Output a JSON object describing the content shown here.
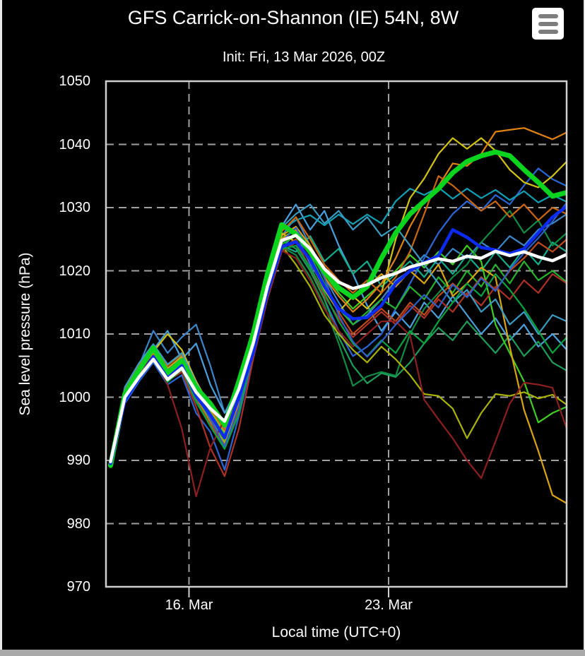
{
  "page": {
    "title": "GFS Carrick-on-Shannon (IE) 54N, 8W",
    "subtitle": "Init: Fri, 13 Mar 2026, 00Z"
  },
  "menu": {
    "icon": "hamburger-icon",
    "tooltip": "Chart context menu"
  },
  "chart_data": {
    "type": "line",
    "title": "GFS Carrick-on-Shannon (IE) 54N, 8W",
    "subtitle": "Init: Fri, 13 Mar 2026, 00Z",
    "xlabel": "Local time (UTC+0)",
    "ylabel": "Sea level pressure (hPa)",
    "ylim": [
      970,
      1050
    ],
    "yticks": [
      970,
      980,
      990,
      1000,
      1010,
      1020,
      1030,
      1040,
      1050
    ],
    "xticks": [
      {
        "hours": 72,
        "label": "16. Mar"
      },
      {
        "hours": 240,
        "label": "23. Mar"
      }
    ],
    "grid": "dashed",
    "background": "#000000",
    "legend": "none",
    "x_hours": [
      6,
      18,
      30,
      42,
      54,
      66,
      78,
      90,
      102,
      114,
      126,
      138,
      150,
      162,
      174,
      186,
      198,
      210,
      222,
      234,
      246,
      258,
      270,
      282,
      294,
      306,
      318,
      330,
      342,
      354,
      366,
      378,
      390
    ],
    "series": [
      {
        "name": "ens-member-01",
        "color": "#3c85c8",
        "width": 2.2,
        "values": [
          989.9,
          1001,
          1005,
          1010.5,
          1007,
          1009.5,
          1011.5,
          1005,
          997.5,
          1002,
          1010.5,
          1018,
          1025.5,
          1028.5,
          1024,
          1019,
          1015,
          1011.5,
          1013,
          1015.5,
          1018.5,
          1020,
          1022.5,
          1021,
          1023.5,
          1022,
          1024.5,
          1023,
          1025.5,
          1024,
          1026.5,
          1027.5,
          1029
        ]
      },
      {
        "name": "ens-member-02",
        "color": "#2b66d6",
        "width": 2.2,
        "values": [
          989.3,
          999,
          1002.5,
          1005.5,
          1002,
          1003.5,
          997.5,
          994.5,
          988.5,
          997,
          1006.5,
          1016,
          1023.5,
          1026,
          1021,
          1015.5,
          1010.5,
          1006.5,
          1008,
          1010,
          1014,
          1018,
          1022,
          1026,
          1029,
          1031,
          1029.5,
          1032,
          1030.5,
          1033.5,
          1036.2,
          1034.5,
          1033.4
        ]
      },
      {
        "name": "ens-member-03",
        "color": "#4aa0dc",
        "width": 2.2,
        "values": [
          990.2,
          1001.5,
          1004.5,
          1007.5,
          1010.5,
          1006,
          1008.5,
          1002,
          997.5,
          1000.5,
          1011,
          1020,
          1027,
          1030.5,
          1026.5,
          1029.5,
          1024,
          1019.5,
          1014.5,
          1010.5,
          1013.5,
          1011,
          1015,
          1012.5,
          1016,
          1013,
          1010,
          1012.5,
          1009,
          1011.5,
          1008,
          1010,
          1007.5
        ]
      },
      {
        "name": "ens-member-04",
        "color": "#12a0b4",
        "width": 2.2,
        "values": [
          989.6,
          1000.5,
          1004,
          1008,
          1004.5,
          1006.5,
          1001.5,
          998,
          994.5,
          1000,
          1010.5,
          1019.5,
          1026.5,
          1028,
          1028.8,
          1027.2,
          1028.9,
          1027.4,
          1028.9,
          1027.5,
          1031,
          1033,
          1032,
          1033.2,
          1031.4,
          1033,
          1031.5,
          1032.8,
          1031.2,
          1032.6,
          1030.8,
          1032,
          1030.9
        ]
      },
      {
        "name": "ens-member-05",
        "color": "#12ad8d",
        "width": 2.2,
        "values": [
          989.4,
          999.5,
          1003,
          1006,
          1002.5,
          1004.5,
          999.5,
          996,
          992.5,
          998,
          1008,
          1016.5,
          1024,
          1023,
          1025.5,
          1021.5,
          1023.5,
          1019.5,
          1021.5,
          1017.5,
          1019.5,
          1021.5,
          1019,
          1022,
          1019.5,
          1022.5,
          1020,
          1023,
          1020.5,
          1023.5,
          1021,
          1024.5,
          1023
        ]
      },
      {
        "name": "ens-member-06",
        "color": "#1d9e5a",
        "width": 2.2,
        "values": [
          989.7,
          1000.8,
          1004.2,
          1007,
          1003.8,
          1005.5,
          1000.5,
          997,
          993.8,
          999,
          1009,
          1017.5,
          1024.8,
          1023.5,
          1020,
          1015.5,
          1009.5,
          1005,
          1002.2,
          1003.8,
          1003.2,
          1005.5,
          1008.5,
          1011,
          1009,
          1012,
          1009.5,
          1007,
          1009.8,
          1006.5,
          1008.8,
          1005.5,
          1004.2
        ]
      },
      {
        "name": "ens-member-07",
        "color": "#27b32d",
        "width": 2.2,
        "values": [
          989.1,
          999.8,
          1003.6,
          1006.8,
          1003.2,
          1005,
          1000.2,
          996.5,
          993,
          998.5,
          1008.5,
          1017.2,
          1024.2,
          1025.5,
          1022.5,
          1018,
          1014,
          1011.5,
          1013.5,
          1015.5,
          1014,
          1017.5,
          1015.5,
          1019,
          1016.5,
          1020,
          1017.5,
          1021,
          1018,
          1021.5,
          1018.5,
          1020,
          1018.2
        ]
      },
      {
        "name": "ens-member-08",
        "color": "#3fce22",
        "width": 2.2,
        "values": [
          990,
          1001.2,
          1004.8,
          1007.8,
          1004.2,
          1006,
          1001.2,
          997.8,
          994.2,
          1000,
          1009.5,
          1018.2,
          1025.2,
          1026.5,
          1023.5,
          1019.5,
          1016.5,
          1014,
          1016,
          1018,
          1020,
          1022.5,
          1020.5,
          1023,
          1021,
          1024,
          1021.5,
          1011.5,
          1007,
          1002.5,
          996,
          997.5,
          998.5
        ]
      },
      {
        "name": "ens-member-09",
        "color": "#108c44",
        "width": 2.2,
        "values": [
          989.2,
          1000.2,
          1003.8,
          1006.2,
          1002.8,
          1004.2,
          999.2,
          995.5,
          992,
          997.5,
          1007.8,
          1016.8,
          1023.8,
          1022.5,
          1019,
          1014.5,
          1008.5,
          1001.8,
          1003.3,
          1004,
          1003.4,
          1010,
          1014,
          1016.5,
          1019,
          1021,
          1024.5,
          1027,
          1029.5,
          1026,
          1028,
          1024,
          1026
        ]
      },
      {
        "name": "ens-member-10",
        "color": "#aab303",
        "width": 2.2,
        "values": [
          989.8,
          1000.4,
          1004,
          1006.4,
          1003,
          1004.8,
          999.8,
          996,
          992.8,
          998.2,
          1008.2,
          1017,
          1024,
          1021,
          1017.5,
          1013,
          1010,
          1007.5,
          1005.5,
          1008,
          1006,
          1003.5,
          1000.5,
          1000.2,
          998.2,
          993.5,
          997.5,
          1000.5,
          1000.2,
          1000.8,
          999.8,
          1000.4,
          998.8
        ]
      },
      {
        "name": "ens-member-11",
        "color": "#d2c313",
        "width": 2.2,
        "values": [
          989.5,
          1000.6,
          1004.4,
          1007.2,
          1010,
          1007.5,
          1002.5,
          998.5,
          995,
          1000.5,
          1010.8,
          1019,
          1026,
          1024.5,
          1021.5,
          1017,
          1013.5,
          1016,
          1014,
          1016.5,
          1025,
          1031.5,
          1034.6,
          1038.5,
          1041,
          1039.3,
          1041,
          1039,
          1036,
          1034,
          1033.2,
          1035,
          1037.3
        ]
      },
      {
        "name": "ens-member-12",
        "color": "#d9a511",
        "width": 2.2,
        "values": [
          990.1,
          1001,
          1004.6,
          1007.6,
          1004.6,
          1006.4,
          1001.6,
          998,
          994.6,
          1000.2,
          1010.2,
          1018.6,
          1025.6,
          1027,
          1024,
          1020,
          1017.5,
          1015.5,
          1017.5,
          1019.5,
          1017.5,
          1020,
          1018,
          1021,
          1016,
          1018,
          1020.5,
          1019,
          1008,
          998,
          991.5,
          984.5,
          983.2
        ]
      },
      {
        "name": "ens-member-13",
        "color": "#e08214",
        "width": 2.2,
        "values": [
          989.4,
          1000.2,
          1004.2,
          1007,
          1003.6,
          1005.2,
          1000.6,
          996.8,
          993.4,
          999,
          1009.2,
          1018,
          1025,
          1026.5,
          1023,
          1019,
          1016,
          1013.5,
          1015.5,
          1018,
          1022,
          1027,
          1031,
          1033.4,
          1037,
          1036.6,
          1038.5,
          1042,
          1042.3,
          1042.6,
          1041.7,
          1040.8,
          1041.9
        ]
      },
      {
        "name": "ens-member-14",
        "color": "#cb6711",
        "width": 2.2,
        "values": [
          989.9,
          1001.4,
          1005.2,
          1008.2,
          1005,
          1006.8,
          1002,
          998.2,
          994.8,
          1000.8,
          1010.6,
          1019.2,
          1026.2,
          1028.5,
          1025,
          1021,
          1018.5,
          1016.5,
          1018.5,
          1016.5,
          1019,
          1023,
          1029,
          1035,
          1033.5,
          1031.5,
          1029.5,
          1031,
          1028.5,
          1030.5,
          1028,
          1030,
          1029
        ]
      },
      {
        "name": "ens-member-15",
        "color": "#bf4a1c",
        "width": 2.2,
        "values": [
          989.6,
          1000,
          1003.4,
          1006.6,
          1003.4,
          1004.6,
          999.6,
          995.8,
          992.4,
          997.8,
          1008,
          1016.6,
          1023.6,
          1025,
          1021.5,
          1017.5,
          1013.5,
          1010,
          1012,
          1014,
          1012,
          1015,
          1013,
          1016,
          1018,
          1016,
          1019,
          1017,
          1020,
          1022,
          1024.5,
          1023,
          1025
        ]
      },
      {
        "name": "ens-member-16",
        "color": "#ad3124",
        "width": 2.2,
        "values": [
          989.3,
          999.6,
          1003.2,
          1006,
          1002.6,
          1004,
          998.5,
          992,
          987.5,
          995,
          1006,
          1015.5,
          1023,
          1024.5,
          1020.5,
          1016,
          1012.5,
          1009.5,
          1011.5,
          1013.5,
          1011.5,
          1014.5,
          1012.5,
          1015.5,
          1013.5,
          1016.5,
          1014.5,
          1017.5,
          1015.5,
          1018.5,
          1016.5,
          1019.5,
          1018
        ]
      },
      {
        "name": "ens-member-17",
        "color": "#8e1f1f",
        "width": 2.2,
        "values": [
          989.7,
          1000.6,
          1004,
          1006.6,
          1002,
          995,
          984.3,
          992,
          996.5,
          999.5,
          1008.8,
          1016.2,
          1023.2,
          1022,
          1018.5,
          1014,
          1010.5,
          1008,
          1010,
          1012,
          1012,
          1009.8,
          999.6,
          996.5,
          993.5,
          990,
          987.2,
          993,
          999,
          1002.3,
          1002,
          1001.5,
          995
        ]
      },
      {
        "name": "ens-member-18",
        "color": "#3a9cc2",
        "width": 2.2,
        "values": [
          990.3,
          1001.6,
          1005.4,
          1008.4,
          1005.2,
          1007,
          1002.2,
          998.8,
          995.2,
          1001,
          1011,
          1019.6,
          1026.8,
          1029,
          1030.5,
          1027.5,
          1029.5,
          1026.5,
          1028.5,
          1025.5,
          1027,
          1024,
          1021,
          1018,
          1015,
          1017,
          1013.5,
          1015.5,
          1011.5,
          1013.5,
          1010,
          1013,
          1012
        ]
      },
      {
        "name": "ens-member-19",
        "color": "#07a440",
        "width": 2.2,
        "values": [
          989,
          999.4,
          1003,
          1006.4,
          1002.4,
          1004.4,
          999.4,
          995.4,
          991.8,
          997.4,
          1007.6,
          1016.4,
          1023.4,
          1024,
          1020.5,
          1016.5,
          1012,
          1008.5,
          1006.5,
          1009,
          1007,
          1010.5,
          1008.5,
          1012,
          1015,
          1018,
          1016,
          1019.5,
          1017,
          1014,
          1010.5,
          1007,
          1009.5
        ]
      },
      {
        "name": "ens-member-20",
        "color": "#2e5fc8",
        "width": 2.2,
        "values": [
          989.8,
          1000.9,
          1004.7,
          1007.4,
          1004,
          1005.8,
          1000.8,
          996.5,
          992.2,
          998.4,
          1008.8,
          1017.8,
          1024.6,
          1026.8,
          1023.2,
          1018.8,
          1013,
          1008.8,
          1006.4,
          1008.8,
          1011.5,
          1013.8,
          1016.2,
          1014.2,
          1017.8,
          1015.8,
          1018.8,
          1016.8,
          1020.2,
          1022.8,
          1025.2,
          1027.8,
          1030.8
        ]
      },
      {
        "name": "gfs-operational",
        "color": "#0ad41e",
        "width": 7,
        "values": [
          989.2,
          1000.5,
          1004.3,
          1007.8,
          1003.8,
          1005.8,
          1001.5,
          999,
          995.6,
          1002.5,
          1010,
          1019.5,
          1027.3,
          1025.8,
          1023.2,
          1019.8,
          1017.3,
          1015.8,
          1017.5,
          1022,
          1026,
          1029,
          1031,
          1033,
          1035.5,
          1037.3,
          1038.2,
          1038.8,
          1038.2,
          1036,
          1034,
          1031.8,
          1032.4
        ]
      },
      {
        "name": "gfs-control",
        "color": "#0c2bf0",
        "width": 4.5,
        "values": [
          989.5,
          999.5,
          1003,
          1006.4,
          1003,
          1005,
          1000.2,
          997.2,
          993.6,
          1000,
          1007,
          1016.5,
          1023.8,
          1024.6,
          1021.8,
          1017.5,
          1014,
          1012.4,
          1012.6,
          1014.5,
          1018,
          1020,
          1021.3,
          1022.4,
          1026.5,
          1025.3,
          1023.7,
          1023.3,
          1022.7,
          1023.5,
          1026,
          1028.5,
          1030.2
        ]
      },
      {
        "name": "ensemble-mean",
        "color": "#ffffff",
        "width": 4.5,
        "values": [
          989.8,
          1000,
          1003.2,
          1006,
          1002.8,
          1004.6,
          1000.8,
          998.2,
          996.2,
          1001.3,
          1008.5,
          1017.5,
          1024.8,
          1025.6,
          1023.5,
          1020.3,
          1018.2,
          1017.2,
          1017.8,
          1018.9,
          1019.6,
          1020.6,
          1021.2,
          1021.9,
          1021.5,
          1022.3,
          1022,
          1023.1,
          1022.4,
          1023,
          1022.2,
          1021.6,
          1022.6
        ]
      }
    ]
  }
}
